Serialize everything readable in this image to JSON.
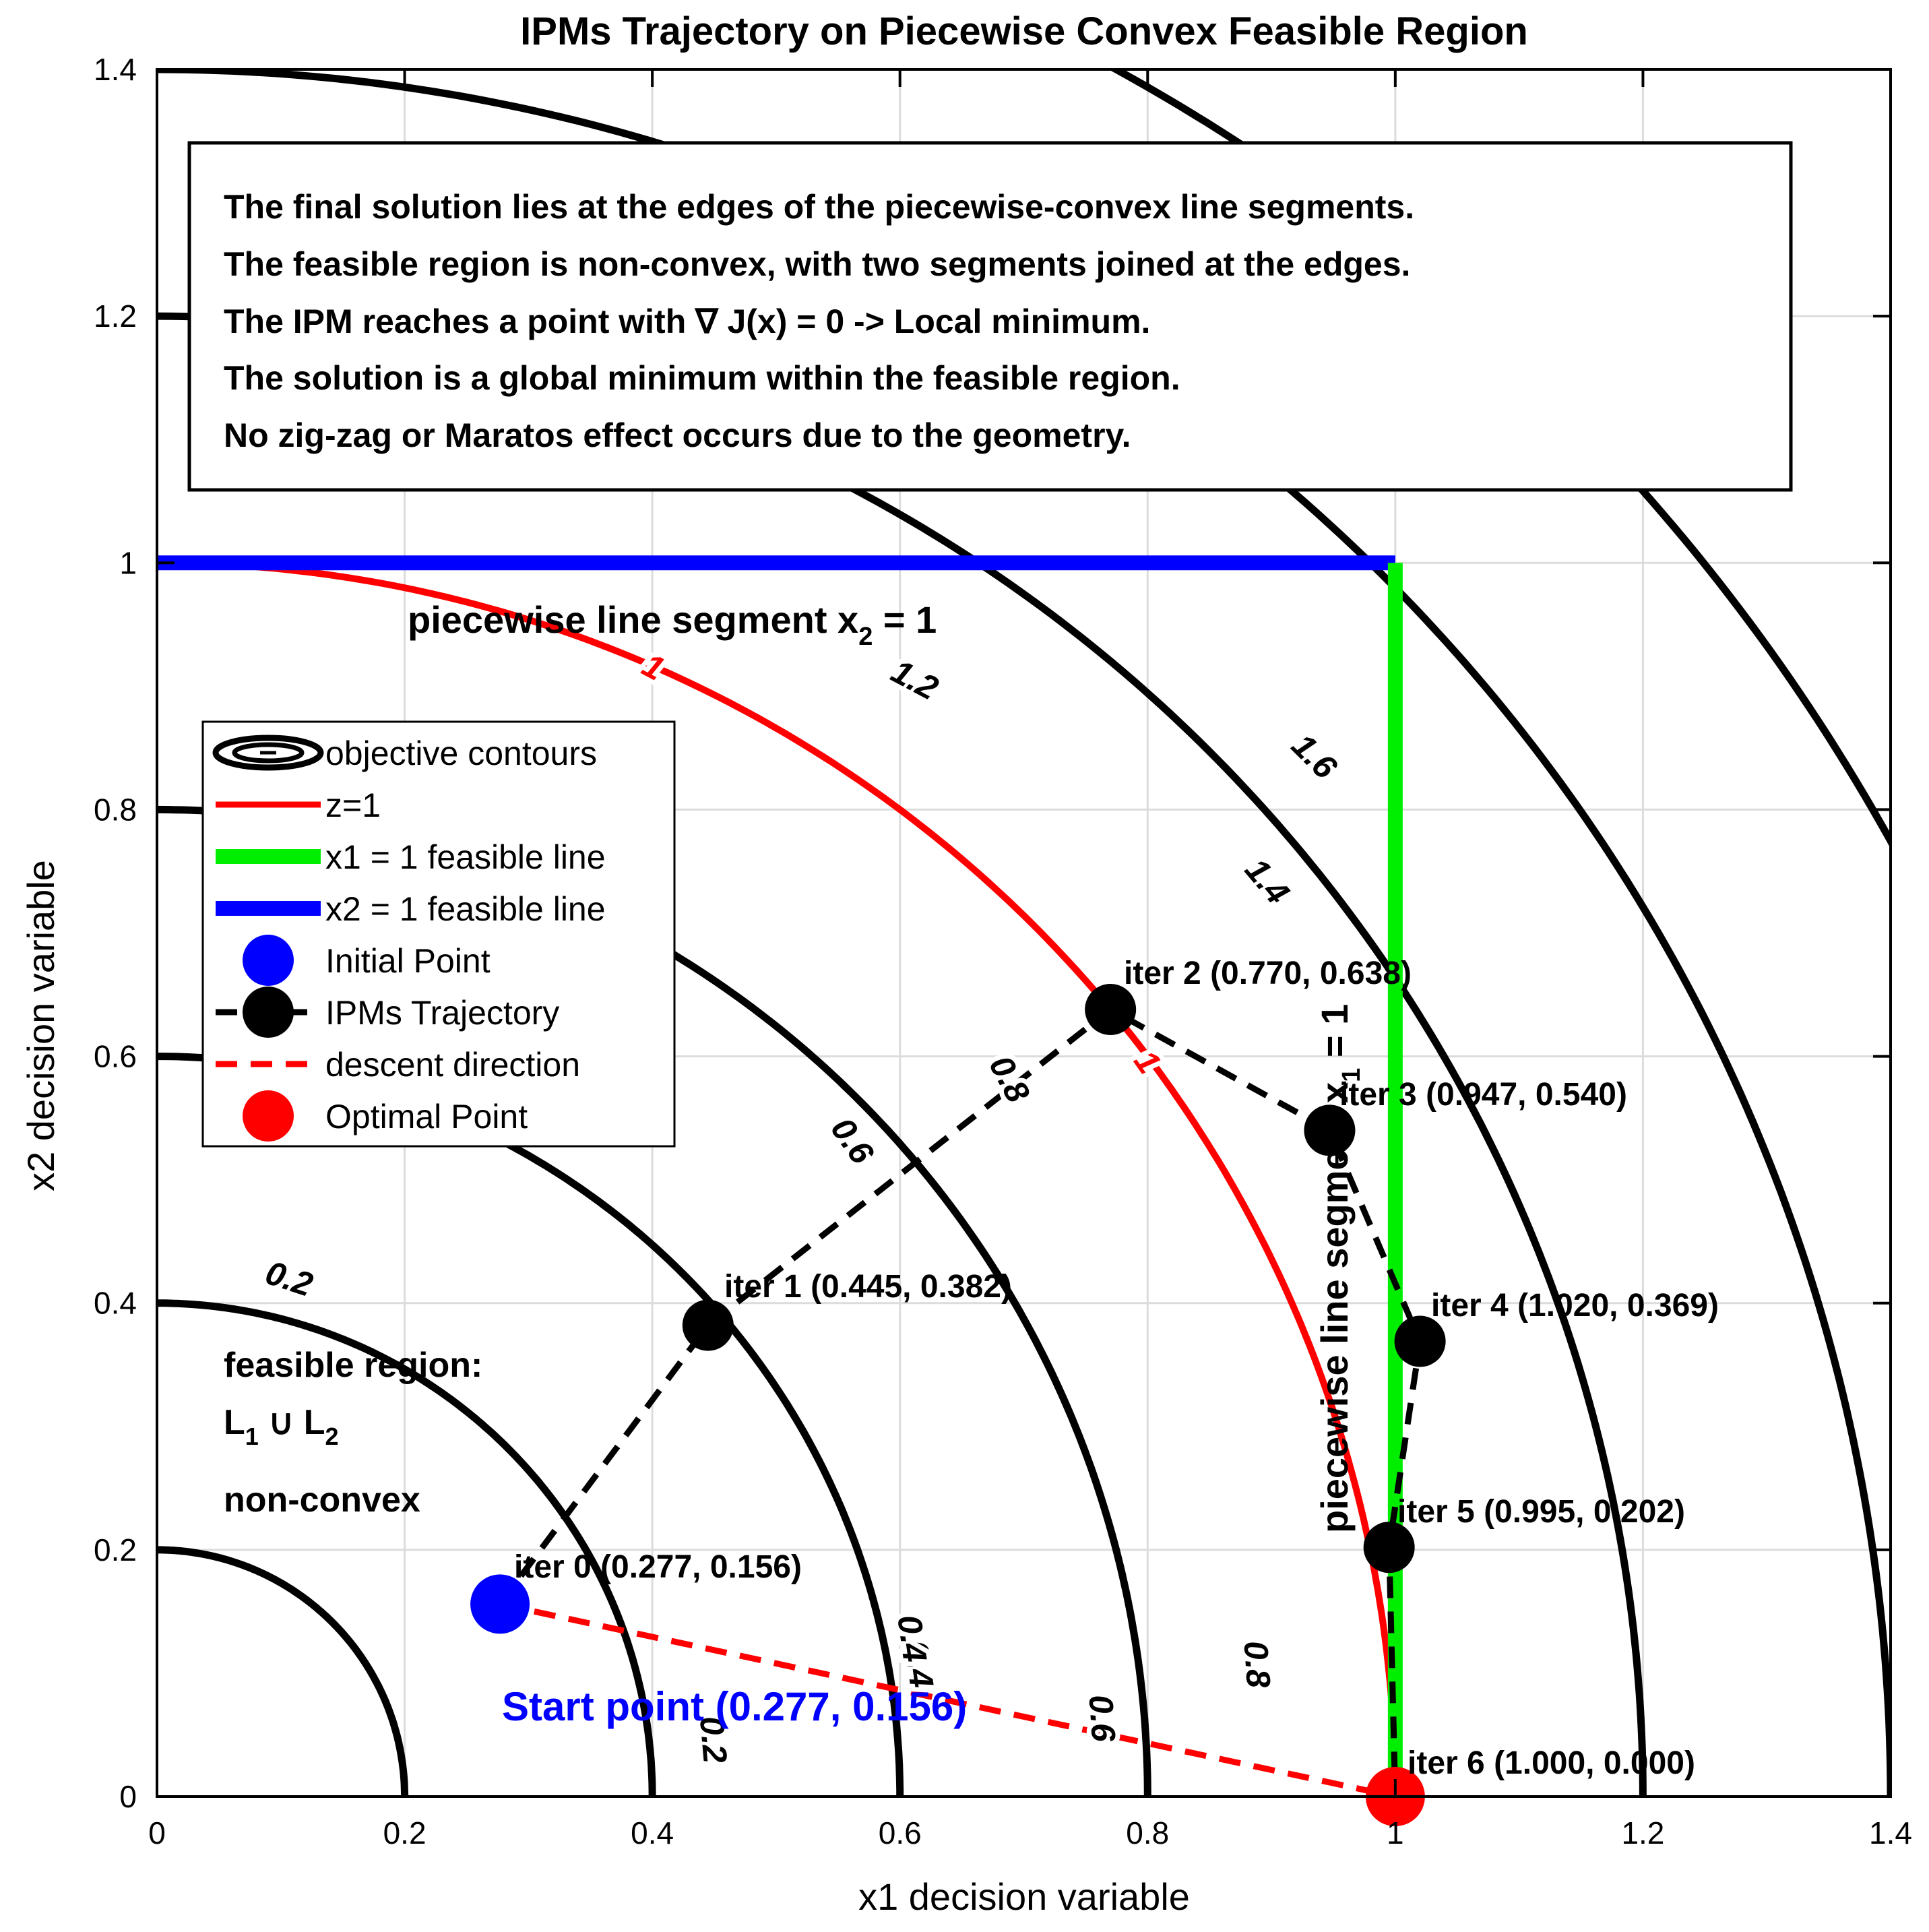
{
  "chart_data": {
    "type": "line",
    "title": "IPMs Trajectory on Piecewise Convex Feasible Region",
    "xlabel": "x1 decision variable",
    "ylabel": "x2 decision variable",
    "xlim": [
      0,
      1.4
    ],
    "ylim": [
      0,
      1.4
    ],
    "xticks": [
      0,
      0.2,
      0.4,
      0.6,
      0.8,
      1,
      1.2,
      1.4
    ],
    "yticks": [
      0,
      0.2,
      0.4,
      0.6,
      0.8,
      1,
      1.2,
      1.4
    ],
    "xtick_labels": [
      "0",
      "0.2",
      "0.4",
      "0.6",
      "0.8",
      "1",
      "1.2",
      "1.4"
    ],
    "ytick_labels": [
      "0",
      "0.2",
      "0.4",
      "0.6",
      "0.8",
      "1",
      "1.2",
      "1.4"
    ],
    "grid": true,
    "legend_position": "left",
    "contours": {
      "levels": [
        0.2,
        0.4,
        0.6,
        0.8,
        1.2,
        1.4,
        1.6
      ],
      "label_texts": [
        "0.2",
        "0.4",
        "0.6",
        "0.8",
        "1.2",
        "1.4",
        "1.6",
        "0.2",
        "0.4",
        "0.6",
        "0.8"
      ],
      "color": "#000000"
    },
    "z1_curve": {
      "level": 1,
      "label": "1",
      "color": "#ff0000"
    },
    "x1_line": {
      "x": 1,
      "y": [
        0,
        1
      ],
      "color": "#00ee00"
    },
    "x2_line": {
      "y": 1,
      "x": [
        0,
        1
      ],
      "color": "#0000ff"
    },
    "trajectory": {
      "x": [
        0.277,
        0.445,
        0.77,
        0.947,
        1.02,
        0.995,
        1.0
      ],
      "y": [
        0.156,
        0.382,
        0.638,
        0.54,
        0.369,
        0.202,
        0.0
      ]
    },
    "descent_direction": {
      "x": [
        0.277,
        1.0
      ],
      "y": [
        0.156,
        0.0
      ],
      "color": "#ff0000"
    },
    "initial_point": {
      "x": 0.277,
      "y": 0.156,
      "color": "#0000ff"
    },
    "optimal_point": {
      "x": 1.0,
      "y": 0.0,
      "color": "#ff0000"
    },
    "iter_labels": [
      "iter 0 (0.277, 0.156)",
      "iter 1 (0.445, 0.382)",
      "iter 2 (0.770, 0.638)",
      "iter 3 (0.947, 0.540)",
      "iter 4 (1.020, 0.369)",
      "iter 5 (0.995, 0.202)",
      "iter 6 (1.000, 0.000)"
    ],
    "legend": [
      "objective contours",
      "z=1",
      "x1 = 1 feasible line",
      "x2 = 1 feasible line",
      "Initial Point",
      "IPMs Trajectory",
      "descent direction",
      "Optimal Point"
    ],
    "annotations": {
      "note_lines": [
        "The final solution lies at the edges of the piecewise-convex line segments.",
        "The feasible region is non-convex, with two segments joined at the edges.",
        "The IPM reaches a point with ∇ J(x) = 0 -> Local minimum.",
        "The solution is a global minimum within the feasible region.",
        "No zig-zag or Maratos effect occurs due to the geometry."
      ],
      "segment_x2_main": "piecewise line segment x",
      "segment_x2_sub": "2",
      "segment_x2_tail": " = 1",
      "segment_x1_main": "piecewise line segment x",
      "segment_x1_sub": "1",
      "segment_x1_tail": " = 1",
      "feasible_title": "feasible region:",
      "feasible_L1": "L",
      "feasible_L1_sub": "1",
      "feasible_union": " ∪ L",
      "feasible_L2_sub": "2",
      "feasible_kind": "non-convex",
      "start_point": "Start point (0.277, 0.156)"
    }
  }
}
